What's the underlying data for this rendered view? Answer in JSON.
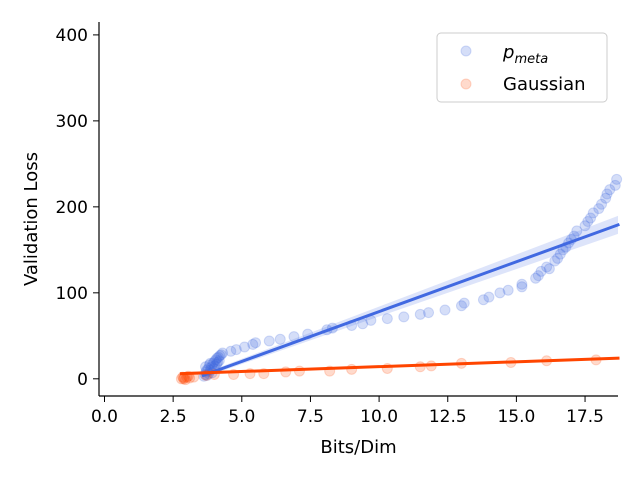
{
  "chart_data": {
    "type": "scatter",
    "title": "",
    "xlabel": "Bits/Dim",
    "ylabel": "Validation Loss",
    "xlim": [
      -0.2,
      18.7
    ],
    "ylim": [
      -20,
      415
    ],
    "xticks": [
      0.0,
      2.5,
      5.0,
      7.5,
      10.0,
      12.5,
      15.0,
      17.5
    ],
    "xtick_labels": [
      "0.0",
      "2.5",
      "5.0",
      "7.5",
      "10.0",
      "12.5",
      "15.0",
      "17.5"
    ],
    "yticks": [
      0,
      100,
      200,
      300,
      400
    ],
    "ytick_labels": [
      "0",
      "100",
      "200",
      "300",
      "400"
    ],
    "grid": false,
    "legend_position": "top-right",
    "series": [
      {
        "name": "p",
        "name_subscript": "meta",
        "color": "#4169e1",
        "marker_alpha": 0.22,
        "points": [
          [
            3.62,
            3
          ],
          [
            3.66,
            5
          ],
          [
            3.7,
            8
          ],
          [
            3.74,
            4
          ],
          [
            3.78,
            12
          ],
          [
            3.8,
            6
          ],
          [
            3.82,
            16
          ],
          [
            3.86,
            10
          ],
          [
            3.9,
            14
          ],
          [
            3.92,
            7
          ],
          [
            3.95,
            18
          ],
          [
            3.98,
            12
          ],
          [
            4.0,
            20
          ],
          [
            4.02,
            15
          ],
          [
            4.05,
            22
          ],
          [
            4.08,
            17
          ],
          [
            4.1,
            24
          ],
          [
            4.12,
            19
          ],
          [
            4.15,
            25
          ],
          [
            4.18,
            21
          ],
          [
            4.2,
            27
          ],
          [
            4.25,
            28
          ],
          [
            4.3,
            30
          ],
          [
            3.68,
            14
          ],
          [
            3.72,
            10
          ],
          [
            3.85,
            18
          ],
          [
            4.6,
            32
          ],
          [
            4.8,
            34
          ],
          [
            5.1,
            37
          ],
          [
            5.4,
            40
          ],
          [
            5.5,
            42
          ],
          [
            6.0,
            44
          ],
          [
            6.4,
            46
          ],
          [
            6.9,
            49
          ],
          [
            7.4,
            52
          ],
          [
            8.1,
            57
          ],
          [
            8.3,
            59
          ],
          [
            9.0,
            62
          ],
          [
            9.4,
            64
          ],
          [
            9.7,
            68
          ],
          [
            10.3,
            70
          ],
          [
            10.9,
            72
          ],
          [
            11.5,
            75
          ],
          [
            11.8,
            77
          ],
          [
            12.4,
            80
          ],
          [
            13.0,
            85
          ],
          [
            13.1,
            88
          ],
          [
            13.8,
            92
          ],
          [
            14.0,
            95
          ],
          [
            14.4,
            100
          ],
          [
            14.7,
            103
          ],
          [
            15.2,
            107
          ],
          [
            15.2,
            110
          ],
          [
            15.7,
            117
          ],
          [
            15.8,
            120
          ],
          [
            15.9,
            125
          ],
          [
            16.1,
            130
          ],
          [
            16.2,
            128
          ],
          [
            16.4,
            137
          ],
          [
            16.5,
            140
          ],
          [
            16.6,
            145
          ],
          [
            16.7,
            150
          ],
          [
            16.8,
            153
          ],
          [
            16.9,
            158
          ],
          [
            17.0,
            162
          ],
          [
            17.1,
            166
          ],
          [
            17.2,
            172
          ],
          [
            17.5,
            178
          ],
          [
            17.6,
            183
          ],
          [
            17.7,
            187
          ],
          [
            17.8,
            193
          ],
          [
            18.0,
            198
          ],
          [
            18.1,
            203
          ],
          [
            18.25,
            210
          ],
          [
            18.3,
            215
          ],
          [
            18.4,
            220
          ],
          [
            18.6,
            225
          ],
          [
            18.65,
            232
          ]
        ],
        "fit": {
          "x": [
            3.6,
            18.7
          ],
          "y": [
            4,
            179
          ]
        }
      },
      {
        "name": "Gaussian",
        "color": "#ff4500",
        "marker_alpha": 0.2,
        "points": [
          [
            2.8,
            0
          ],
          [
            2.85,
            2
          ],
          [
            2.88,
            0
          ],
          [
            2.9,
            1
          ],
          [
            2.95,
            -1
          ],
          [
            3.0,
            2
          ],
          [
            3.05,
            3
          ],
          [
            3.1,
            1
          ],
          [
            3.25,
            2
          ],
          [
            3.7,
            4
          ],
          [
            4.0,
            5
          ],
          [
            4.7,
            5
          ],
          [
            5.3,
            6
          ],
          [
            5.8,
            6
          ],
          [
            6.6,
            8
          ],
          [
            7.1,
            9
          ],
          [
            8.2,
            9
          ],
          [
            9.0,
            11
          ],
          [
            10.3,
            12
          ],
          [
            11.5,
            14
          ],
          [
            11.9,
            15
          ],
          [
            13.0,
            18
          ],
          [
            14.8,
            19
          ],
          [
            16.1,
            21
          ],
          [
            17.9,
            22
          ]
        ],
        "fit": {
          "x": [
            2.8,
            18.7
          ],
          "y": [
            6,
            24
          ]
        }
      }
    ]
  }
}
